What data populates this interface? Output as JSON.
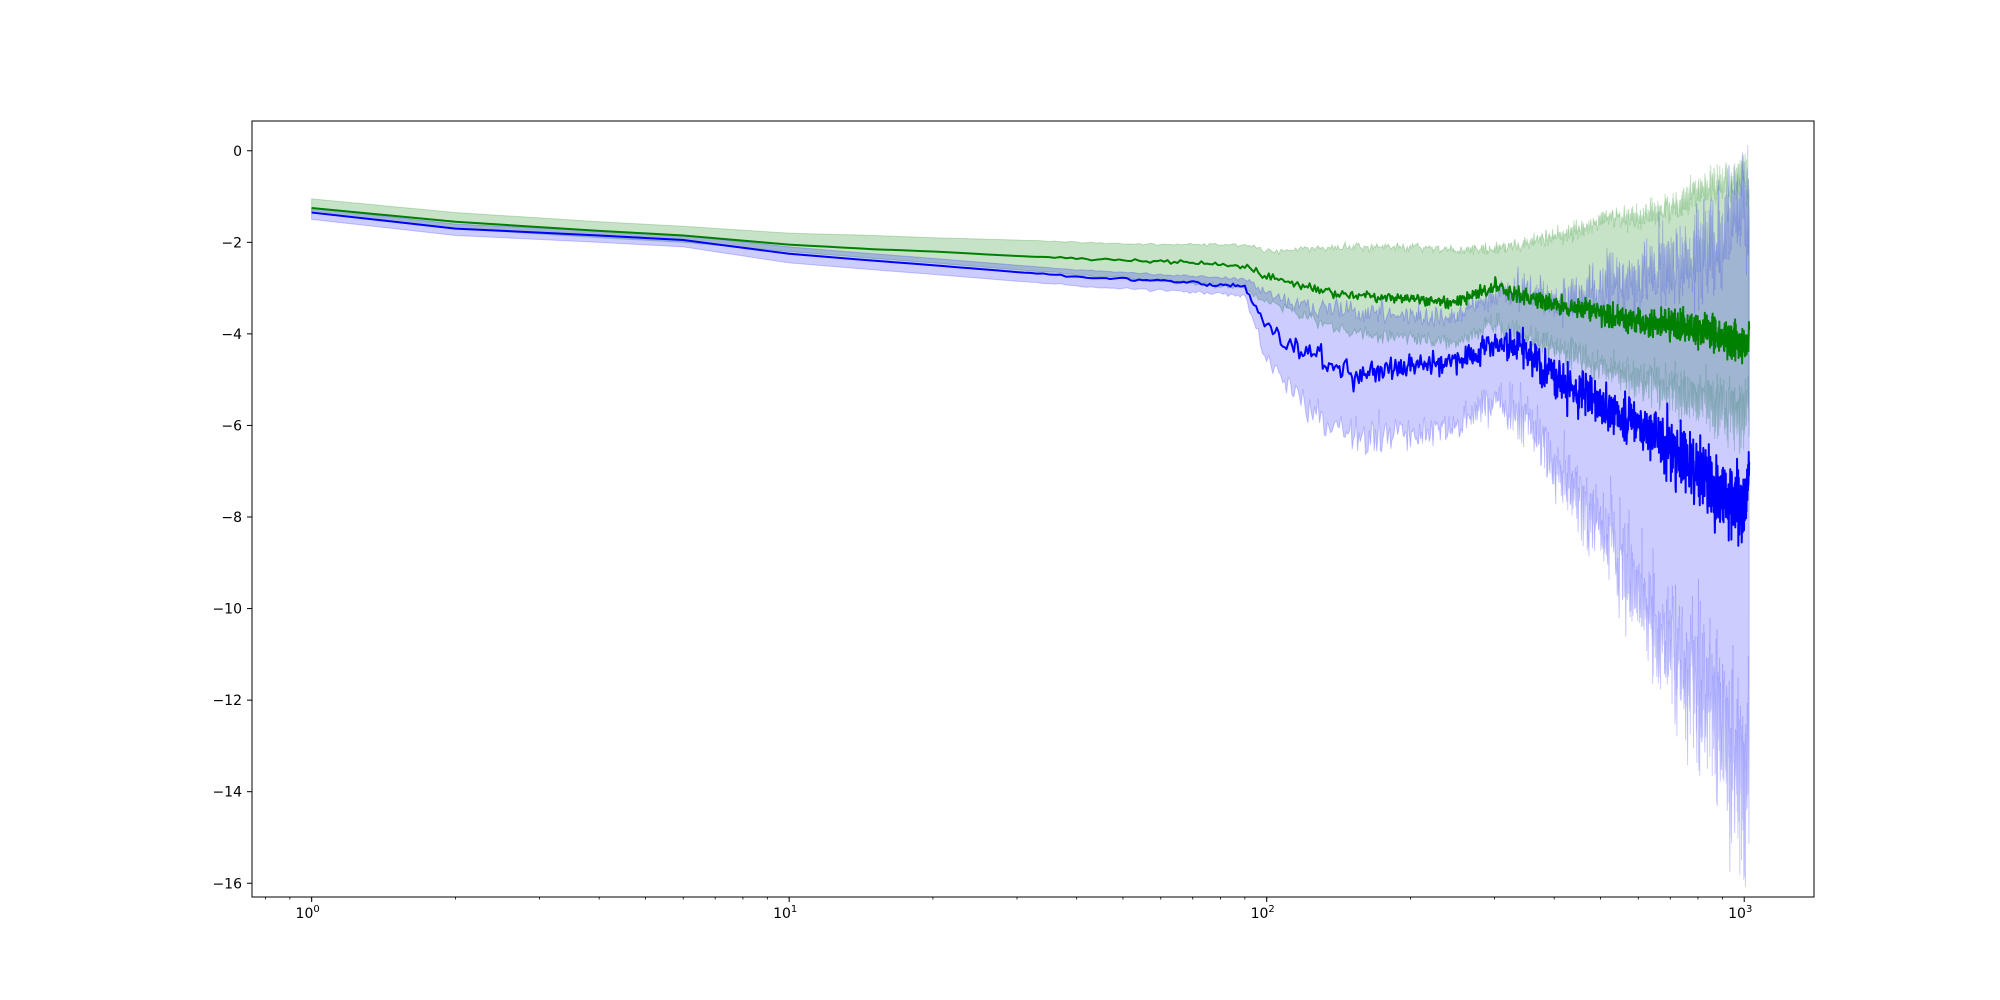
{
  "chart_data": {
    "type": "line",
    "title": "",
    "xlabel": "",
    "ylabel": "",
    "xscale": "log",
    "xlim": [
      0.75,
      1400
    ],
    "ylim": [
      -16.3,
      0.65
    ],
    "grid": false,
    "legend": "none",
    "x_ticks": [
      {
        "base": "10",
        "exp": "0",
        "value": 1
      },
      {
        "base": "10",
        "exp": "1",
        "value": 10
      },
      {
        "base": "10",
        "exp": "2",
        "value": 100
      },
      {
        "base": "10",
        "exp": "3",
        "value": 1000
      }
    ],
    "y_ticks": [
      {
        "label": "0",
        "value": 0
      },
      {
        "label": "−2",
        "value": -2
      },
      {
        "label": "−4",
        "value": -4
      },
      {
        "label": "−6",
        "value": -6
      },
      {
        "label": "−8",
        "value": -8
      },
      {
        "label": "−10",
        "value": -10
      },
      {
        "label": "−12",
        "value": -12
      },
      {
        "label": "−14",
        "value": -14
      },
      {
        "label": "−16",
        "value": -16
      }
    ],
    "series": [
      {
        "color": "#008000",
        "band_color": "#008000",
        "band_opacity": 0.22,
        "x": [
          1,
          2,
          4,
          6,
          10,
          15,
          20,
          30,
          40,
          60,
          90,
          100,
          120,
          150,
          200,
          250,
          300,
          400,
          500,
          600,
          700,
          800,
          900,
          1000,
          1024
        ],
        "y": [
          -1.25,
          -1.55,
          -1.75,
          -1.85,
          -2.05,
          -2.15,
          -2.2,
          -2.3,
          -2.35,
          -2.42,
          -2.5,
          -2.75,
          -2.95,
          -3.15,
          -3.2,
          -3.3,
          -3.0,
          -3.35,
          -3.55,
          -3.75,
          -3.8,
          -3.9,
          -4.05,
          -4.25,
          -4.0
        ],
        "upper": [
          -1.05,
          -1.35,
          -1.55,
          -1.65,
          -1.8,
          -1.85,
          -1.9,
          -1.95,
          -2.0,
          -2.05,
          -2.05,
          -2.2,
          -2.15,
          -2.1,
          -2.1,
          -2.2,
          -2.15,
          -1.9,
          -1.5,
          -1.45,
          -1.25,
          -0.9,
          -0.8,
          -0.5,
          -0.8
        ],
        "lower": [
          -1.35,
          -1.7,
          -1.9,
          -2.0,
          -2.2,
          -2.35,
          -2.45,
          -2.6,
          -2.7,
          -2.85,
          -3.0,
          -3.3,
          -3.6,
          -4.0,
          -4.1,
          -4.2,
          -3.8,
          -4.3,
          -4.7,
          -5.0,
          -5.2,
          -5.4,
          -5.6,
          -5.8,
          -5.5
        ],
        "noise": [
          0,
          0,
          0,
          0,
          0,
          0,
          0,
          0,
          0.02,
          0.03,
          0.04,
          0.06,
          0.08,
          0.1,
          0.1,
          0.1,
          0.15,
          0.15,
          0.18,
          0.22,
          0.25,
          0.28,
          0.3,
          0.3,
          0.3
        ],
        "band_noise": [
          0,
          0,
          0,
          0,
          0,
          0,
          0,
          0,
          0.02,
          0.03,
          0.05,
          0.08,
          0.1,
          0.12,
          0.12,
          0.12,
          0.2,
          0.25,
          0.3,
          0.35,
          0.4,
          0.5,
          0.55,
          0.6,
          0.6
        ]
      },
      {
        "color": "#0000ff",
        "band_color": "#0000ff",
        "band_opacity": 0.2,
        "x": [
          1,
          2,
          4,
          6,
          10,
          15,
          20,
          30,
          40,
          60,
          90,
          100,
          120,
          150,
          200,
          250,
          300,
          350,
          400,
          500,
          600,
          700,
          800,
          900,
          1000,
          1024
        ],
        "y": [
          -1.35,
          -1.7,
          -1.85,
          -1.95,
          -2.25,
          -2.4,
          -2.5,
          -2.65,
          -2.75,
          -2.85,
          -2.95,
          -3.8,
          -4.4,
          -4.9,
          -4.7,
          -4.6,
          -4.2,
          -4.4,
          -5.0,
          -5.5,
          -6.0,
          -6.5,
          -7.0,
          -7.5,
          -7.9,
          -7.0
        ],
        "upper": [
          -1.25,
          -1.6,
          -1.75,
          -1.85,
          -2.1,
          -2.25,
          -2.35,
          -2.5,
          -2.6,
          -2.7,
          -2.8,
          -3.1,
          -3.4,
          -3.5,
          -3.6,
          -3.6,
          -3.1,
          -3.0,
          -3.4,
          -3.0,
          -2.8,
          -2.5,
          -2.3,
          -1.8,
          -1.2,
          -1.5
        ],
        "lower": [
          -1.5,
          -1.85,
          -2.0,
          -2.1,
          -2.45,
          -2.6,
          -2.7,
          -2.85,
          -2.95,
          -3.05,
          -3.15,
          -4.6,
          -5.6,
          -6.2,
          -6.2,
          -6.0,
          -5.5,
          -5.8,
          -6.8,
          -8.2,
          -9.5,
          -10.8,
          -11.5,
          -12.5,
          -14.0,
          -12.5
        ],
        "noise": [
          0,
          0,
          0,
          0,
          0,
          0,
          0,
          0,
          0.02,
          0.03,
          0.05,
          0.15,
          0.2,
          0.25,
          0.2,
          0.2,
          0.25,
          0.3,
          0.35,
          0.4,
          0.45,
          0.5,
          0.55,
          0.6,
          0.6,
          0.6
        ],
        "band_noise": [
          0,
          0,
          0,
          0,
          0,
          0,
          0,
          0,
          0.02,
          0.03,
          0.05,
          0.2,
          0.3,
          0.35,
          0.3,
          0.3,
          0.4,
          0.5,
          0.6,
          0.8,
          1.0,
          1.2,
          1.4,
          1.5,
          1.6,
          1.6
        ]
      }
    ]
  }
}
